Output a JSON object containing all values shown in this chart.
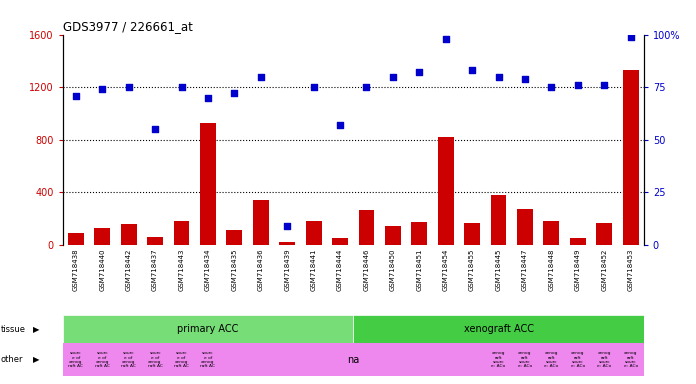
{
  "title": "GDS3977 / 226661_at",
  "samples": [
    "GSM718438",
    "GSM718440",
    "GSM718442",
    "GSM718437",
    "GSM718443",
    "GSM718434",
    "GSM718435",
    "GSM718436",
    "GSM718439",
    "GSM718441",
    "GSM718444",
    "GSM718446",
    "GSM718450",
    "GSM718451",
    "GSM718454",
    "GSM718455",
    "GSM718445",
    "GSM718447",
    "GSM718448",
    "GSM718449",
    "GSM718452",
    "GSM718453"
  ],
  "counts": [
    90,
    130,
    155,
    60,
    185,
    930,
    110,
    340,
    20,
    185,
    55,
    265,
    140,
    175,
    820,
    165,
    380,
    275,
    185,
    55,
    165,
    1330
  ],
  "percentiles": [
    71,
    74,
    75,
    55,
    75,
    70,
    72,
    80,
    9,
    75,
    57,
    75,
    80,
    82,
    98,
    83,
    80,
    79,
    75,
    76,
    76,
    99
  ],
  "ylim_left": [
    0,
    1600
  ],
  "ylim_right": [
    0,
    100
  ],
  "yticks_left": [
    0,
    400,
    800,
    1200,
    1600
  ],
  "ytick_labels_left": [
    "0",
    "400",
    "800",
    "1200",
    "1600"
  ],
  "ytick_labels_right": [
    "0",
    "25",
    "50",
    "75",
    "100%"
  ],
  "bar_color": "#cc0000",
  "dot_color": "#0000cc",
  "primary_acc_count": 11,
  "tissue_primary_color": "#77dd77",
  "tissue_xenograft_color": "#44cc44",
  "tissue_label_primary": "primary ACC",
  "tissue_label_xenograft": "xenograft ACC",
  "other_row_color": "#ee88ee",
  "other_text_na": "na",
  "background_color": "#ffffff",
  "xticklabel_bg": "#cccccc"
}
